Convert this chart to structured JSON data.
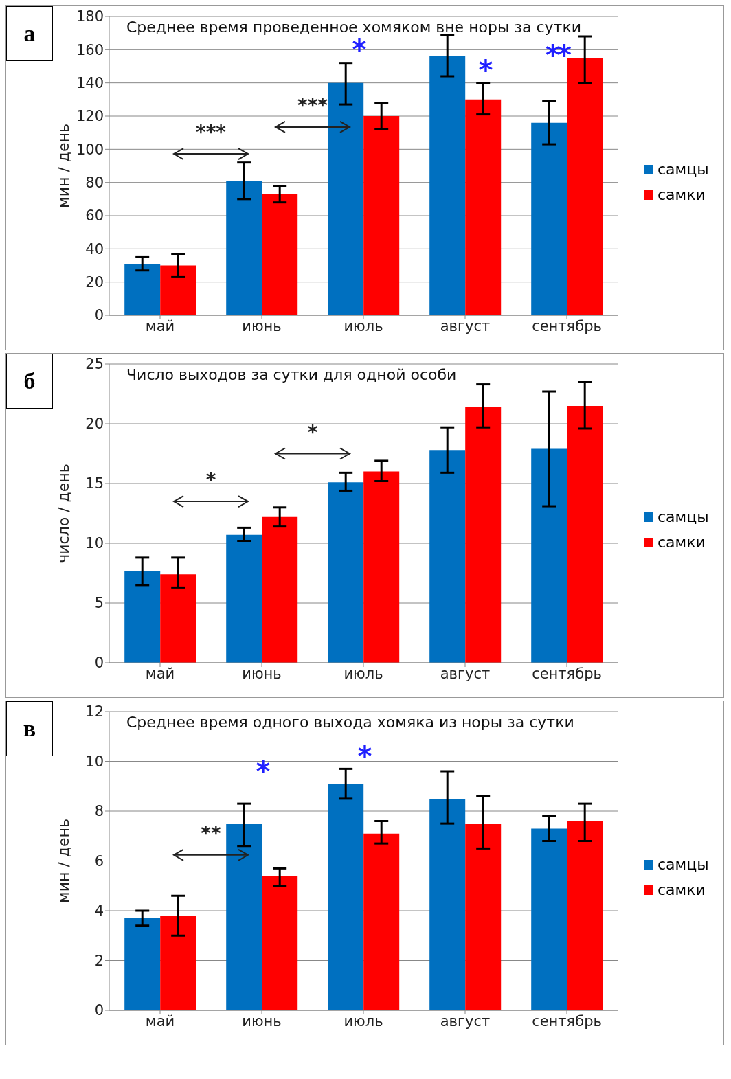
{
  "chart_data": [
    {
      "type": "bar",
      "title": "Среднее время проведенное хомяком вне норы за сутки",
      "ylabel": "мин / день",
      "categories": [
        "май",
        "июнь",
        "июль",
        "август",
        "сентябрь"
      ],
      "ylim": [
        0,
        180
      ],
      "yticks": [
        0,
        20,
        40,
        60,
        80,
        100,
        120,
        140,
        160,
        180
      ],
      "grid": "y",
      "legend": "right",
      "series": [
        {
          "name": "самцы",
          "color": "#0070c0",
          "values": [
            31,
            81,
            140,
            156,
            116
          ],
          "errors": [
            [
              27,
              35
            ],
            [
              70,
              92
            ],
            [
              127,
              152
            ],
            [
              144,
              169
            ],
            [
              103,
              129
            ]
          ]
        },
        {
          "name": "самки",
          "color": "#ff0000",
          "values": [
            30,
            73,
            120,
            130,
            155
          ],
          "errors": [
            [
              23,
              37
            ],
            [
              68,
              78
            ],
            [
              112,
              128
            ],
            [
              121,
              140
            ],
            [
              140,
              168
            ]
          ]
        }
      ],
      "annotations": [
        "а",
        "***",
        "***",
        "*",
        "*",
        "**"
      ]
    },
    {
      "type": "bar",
      "title": "Число выходов за сутки для одной особи",
      "ylabel": "число / день",
      "categories": [
        "май",
        "июнь",
        "июль",
        "август",
        "сентябрь"
      ],
      "ylim": [
        0,
        25
      ],
      "yticks": [
        0,
        5,
        10,
        15,
        20,
        25
      ],
      "grid": "y",
      "legend": "right",
      "series": [
        {
          "name": "самцы",
          "color": "#0070c0",
          "values": [
            7.7,
            10.7,
            15.1,
            17.8,
            17.9
          ],
          "errors": [
            [
              6.5,
              8.8
            ],
            [
              10.2,
              11.3
            ],
            [
              14.4,
              15.9
            ],
            [
              15.9,
              19.7
            ],
            [
              13.1,
              22.7
            ]
          ]
        },
        {
          "name": "самки",
          "color": "#ff0000",
          "values": [
            7.4,
            12.2,
            16.0,
            21.4,
            21.5
          ],
          "errors": [
            [
              6.3,
              8.8
            ],
            [
              11.4,
              13.0
            ],
            [
              15.2,
              16.9
            ],
            [
              19.7,
              23.3
            ],
            [
              19.6,
              23.5
            ]
          ]
        }
      ],
      "annotations": [
        "б",
        "*",
        "*"
      ]
    },
    {
      "type": "bar",
      "title": "Среднее время одного выхода хомяка из норы за сутки",
      "ylabel": "мин / день",
      "categories": [
        "май",
        "июнь",
        "июль",
        "август",
        "сентябрь"
      ],
      "ylim": [
        0,
        12
      ],
      "yticks": [
        0,
        2,
        4,
        6,
        8,
        10,
        12
      ],
      "grid": "y",
      "legend": "right",
      "series": [
        {
          "name": "самцы",
          "color": "#0070c0",
          "values": [
            3.7,
            7.5,
            9.1,
            8.5,
            7.3
          ],
          "errors": [
            [
              3.4,
              4.0
            ],
            [
              6.6,
              8.3
            ],
            [
              8.5,
              9.7
            ],
            [
              7.5,
              9.6
            ],
            [
              6.8,
              7.8
            ]
          ]
        },
        {
          "name": "самки",
          "color": "#ff0000",
          "values": [
            3.8,
            5.4,
            7.1,
            7.5,
            7.6
          ],
          "errors": [
            [
              3.0,
              4.6
            ],
            [
              5.0,
              5.7
            ],
            [
              6.7,
              7.6
            ],
            [
              6.5,
              8.6
            ],
            [
              6.8,
              8.3
            ]
          ]
        }
      ],
      "annotations": [
        "в",
        "**",
        "*",
        "*"
      ]
    }
  ]
}
